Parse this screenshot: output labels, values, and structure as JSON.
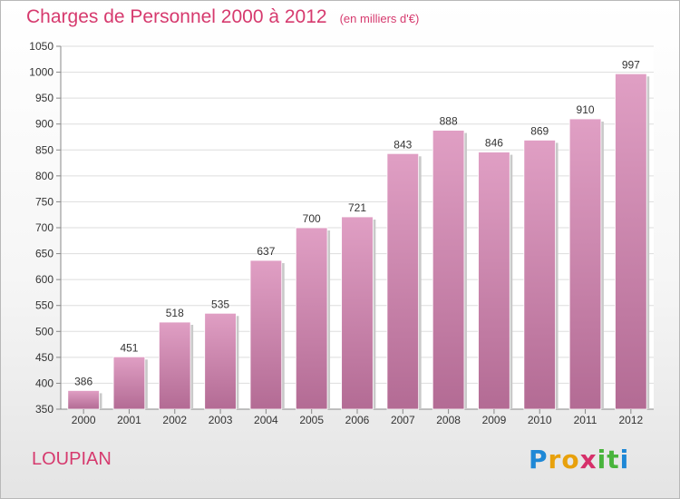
{
  "chart_data": {
    "type": "bar",
    "title": "Charges de Personnel 2000 à 2012",
    "subtitle": "(en milliers d'€)",
    "categories": [
      "2000",
      "2001",
      "2002",
      "2003",
      "2004",
      "2005",
      "2006",
      "2007",
      "2008",
      "2009",
      "2010",
      "2011",
      "2012"
    ],
    "values": [
      386,
      451,
      518,
      535,
      637,
      700,
      721,
      843,
      888,
      846,
      869,
      910,
      997
    ],
    "yticks": [
      350,
      400,
      450,
      500,
      550,
      600,
      650,
      700,
      750,
      800,
      850,
      900,
      950,
      1000,
      1050
    ],
    "ylim": [
      350,
      1050
    ],
    "xlabel": "",
    "ylabel": "",
    "grid": true,
    "bar_color": "#e09fc4",
    "bar_color_dark": "#b36b94"
  },
  "commune": "LOUPIAN",
  "logo": {
    "letters": [
      "P",
      "r",
      "o",
      "x",
      "i",
      "t",
      "i"
    ],
    "colors": [
      "#1e88d6",
      "#e8a10c",
      "#e8a10c",
      "#d6306a",
      "#49b43c",
      "#49b43c",
      "#1e88d6"
    ]
  },
  "colors": {
    "title": "#d63a6e",
    "grid": "#dddddd",
    "axis": "#888888"
  }
}
